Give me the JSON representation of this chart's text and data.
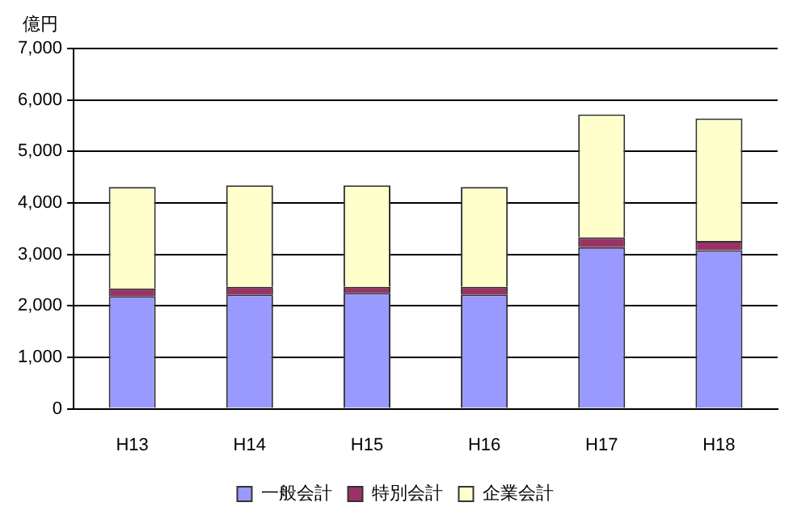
{
  "chart_data": {
    "type": "bar",
    "ylabel": "億円",
    "categories": [
      "H13",
      "H14",
      "H15",
      "H16",
      "H17",
      "H18"
    ],
    "stacked": true,
    "series": [
      {
        "name": "一般会計",
        "color": "#9999ff",
        "values": [
          2190,
          2220,
          2250,
          2220,
          3140,
          3080
        ]
      },
      {
        "name": "特別会計",
        "color": "#993366",
        "values": [
          150,
          150,
          120,
          150,
          190,
          180
        ]
      },
      {
        "name": "企業会計",
        "color": "#ffffcc",
        "values": [
          1970,
          1970,
          1970,
          1940,
          2390,
          2380
        ]
      }
    ],
    "ylim": [
      0,
      7000
    ],
    "yticks": [
      {
        "value": 0,
        "label": "0"
      },
      {
        "value": 1000,
        "label": "1,000"
      },
      {
        "value": 2000,
        "label": "2,000"
      },
      {
        "value": 3000,
        "label": "3,000"
      },
      {
        "value": 4000,
        "label": "4,000"
      },
      {
        "value": 5000,
        "label": "5,000"
      },
      {
        "value": 6000,
        "label": "6,000"
      },
      {
        "value": 7000,
        "label": "7,000"
      }
    ],
    "grid": "y",
    "legend": "bottom"
  }
}
